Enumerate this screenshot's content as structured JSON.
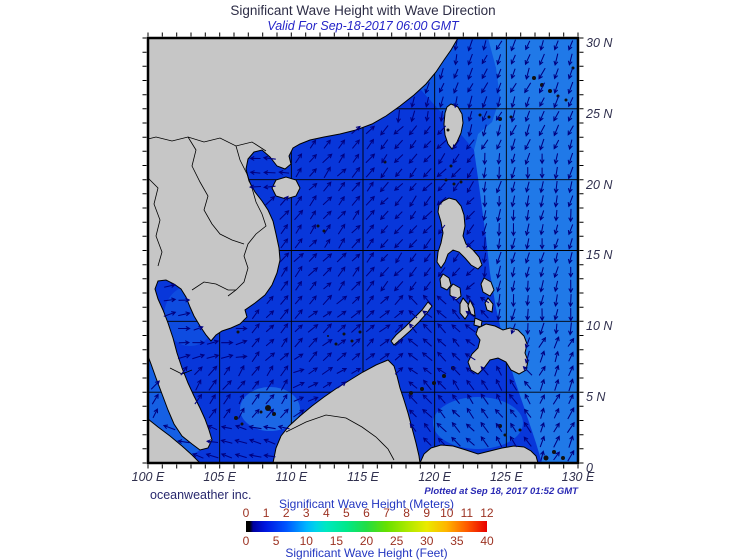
{
  "title": "Significant Wave Height with Wave Direction",
  "subtitle": "Valid For Sep-18-2017 06:00 GMT",
  "map": {
    "lat_labels": [
      "30 N",
      "25 N",
      "20 N",
      "15 N",
      "10 N",
      "5 N",
      "0"
    ],
    "lon_labels": [
      "100 E",
      "105 E",
      "110 E",
      "115 E",
      "120 E",
      "125 E",
      "130 E"
    ]
  },
  "footer": {
    "credit": "oceanweather inc.",
    "plotted": "Plotted at Sep 18, 2017 01:52 GMT"
  },
  "legend": {
    "meters_title": "Significant Wave Height (Meters)",
    "feet_title": "Significant Wave Height (Feet)",
    "meters_ticks": [
      "0",
      "1",
      "2",
      "3",
      "4",
      "5",
      "6",
      "7",
      "8",
      "9",
      "10",
      "11",
      "12"
    ],
    "feet_ticks": [
      "0",
      "5",
      "10",
      "15",
      "20",
      "25",
      "30",
      "35",
      "40"
    ]
  },
  "colors": {
    "land": "#c6c6c6",
    "coast_line": "#000000",
    "ocean_base": "#0837da",
    "ocean_mid": "#0d55e2",
    "pacific": "#2079e8",
    "strait_light": "#1560e4",
    "natuna_light": "#1b67e6",
    "gulf_light": "#0e4ce0",
    "borneo_band": "#145ce4",
    "celebes_light": "#1262e2",
    "arrow": "#000080",
    "grid": "#000000",
    "colorbar_stops": "#000000 0%,#000000 1.5%,#0000a0 3%,#0015e0 8%,#0055ff 16.7%,#00b4ff 25%,#00d4e8 29%,#00e8c0 33.3%,#00e88a 41.7%,#22dd44 50%,#66e000 58.3%,#aae800 66.7%,#eaea00 75%,#ffb400 83.3%,#ff5a00 91.7%,#e80000 100%"
  },
  "chart_data": {
    "type": "heatmap",
    "title": "Significant Wave Height with Wave Direction",
    "subtitle": "Valid For Sep-18-2017 06:00 GMT",
    "region": {
      "lon_range_deg_E": [
        100,
        130
      ],
      "lat_range_deg_N": [
        0,
        30
      ],
      "grid_interval_deg": 5
    },
    "colorbar": {
      "meters_scale": [
        0,
        1,
        2,
        3,
        4,
        5,
        6,
        7,
        8,
        9,
        10,
        11,
        12
      ],
      "feet_scale": [
        0,
        5,
        10,
        15,
        20,
        25,
        30,
        35,
        40
      ],
      "meters_label": "Significant Wave Height (Meters)",
      "feet_label": "Significant Wave Height (Feet)"
    },
    "depicted_field": "significant wave height shading (approx 0.5-2.5 m over region) with wave direction arrows"
  }
}
